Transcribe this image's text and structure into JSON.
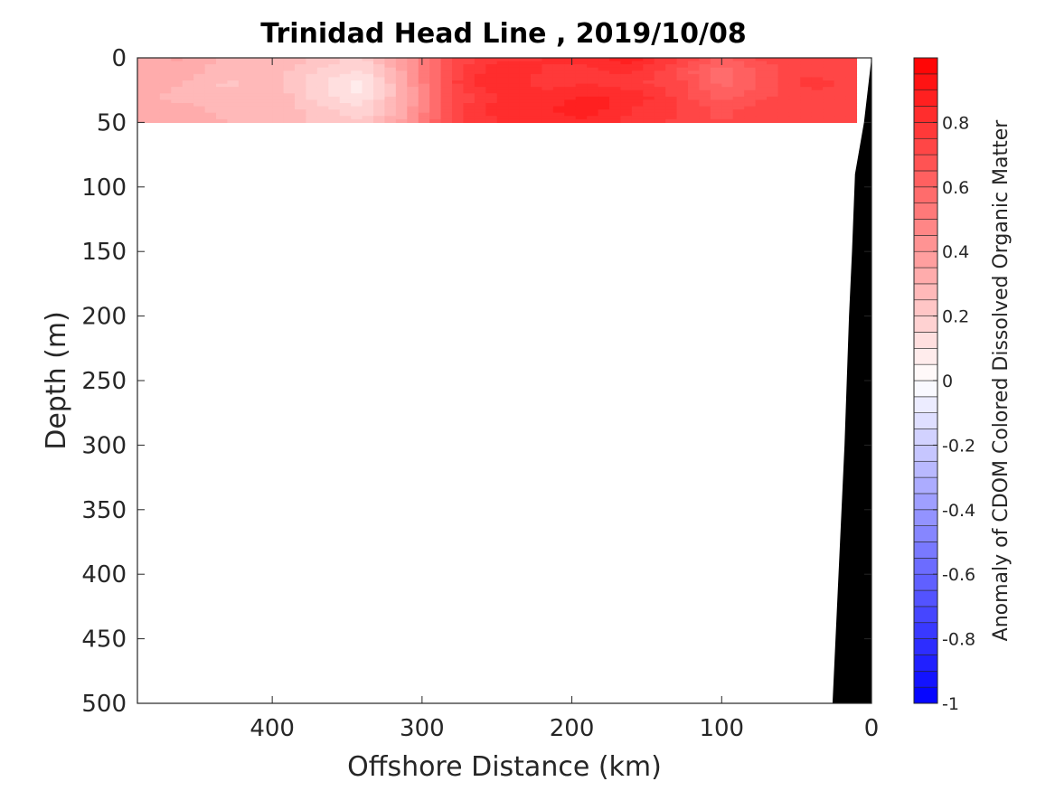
{
  "chart_data": {
    "type": "heatmap",
    "title": "Trinidad Head Line , 2019/10/08",
    "xlabel": "Offshore Distance (km)",
    "ylabel": "Depth (m)",
    "xlim": [
      490,
      0
    ],
    "ylim": [
      0,
      500
    ],
    "x_reversed": true,
    "y_reversed": true,
    "xticks": [
      400,
      300,
      200,
      100,
      0
    ],
    "yticks": [
      0,
      50,
      100,
      150,
      200,
      250,
      300,
      350,
      400,
      450,
      500
    ],
    "data_depth_range": [
      0,
      50
    ],
    "data_distance_range": [
      10,
      490
    ],
    "field": {
      "distance_km": [
        490,
        460,
        430,
        400,
        370,
        340,
        310,
        280,
        250,
        220,
        190,
        160,
        130,
        100,
        70,
        40,
        10
      ],
      "depth_m": [
        0,
        10,
        20,
        30,
        40,
        50
      ],
      "anomaly": [
        [
          0.32,
          0.36,
          0.28,
          0.3,
          0.24,
          0.18,
          0.4,
          0.7,
          0.78,
          0.8,
          0.82,
          0.88,
          0.76,
          0.64,
          0.72,
          0.7,
          0.74
        ],
        [
          0.3,
          0.34,
          0.26,
          0.28,
          0.2,
          0.14,
          0.38,
          0.72,
          0.84,
          0.8,
          0.78,
          0.82,
          0.7,
          0.56,
          0.68,
          0.74,
          0.7
        ],
        [
          0.34,
          0.3,
          0.24,
          0.26,
          0.16,
          0.06,
          0.36,
          0.74,
          0.86,
          0.78,
          0.8,
          0.76,
          0.72,
          0.58,
          0.66,
          0.78,
          0.72
        ],
        [
          0.32,
          0.28,
          0.26,
          0.3,
          0.18,
          0.1,
          0.34,
          0.7,
          0.8,
          0.82,
          0.86,
          0.84,
          0.74,
          0.62,
          0.7,
          0.72,
          0.7
        ],
        [
          0.3,
          0.32,
          0.28,
          0.3,
          0.22,
          0.16,
          0.36,
          0.72,
          0.82,
          0.84,
          0.88,
          0.8,
          0.76,
          0.68,
          0.74,
          0.7,
          0.72
        ],
        [
          0.32,
          0.34,
          0.3,
          0.28,
          0.24,
          0.2,
          0.38,
          0.74,
          0.8,
          0.82,
          0.84,
          0.78,
          0.74,
          0.7,
          0.72,
          0.74,
          0.7
        ]
      ]
    },
    "bathymetry": {
      "color": "#000000",
      "points": [
        [
          0,
          0
        ],
        [
          5,
          50
        ],
        [
          11,
          90
        ],
        [
          13,
          150
        ],
        [
          15,
          200
        ],
        [
          18,
          300
        ],
        [
          22,
          400
        ],
        [
          26,
          500
        ],
        [
          0,
          500
        ]
      ]
    },
    "colorbar": {
      "label": "Anomaly of CDOM Colored Dissolved Organic Matter",
      "range": [
        -1,
        1
      ],
      "levels": 40,
      "ticks": [
        0.8,
        0.6,
        0.4,
        0.2,
        0,
        -0.2,
        -0.4,
        -0.6,
        -0.8,
        -1
      ],
      "tick_labels": [
        "0.8",
        "0.6",
        "0.4",
        "0.2",
        "0",
        "-0.2",
        "-0.4",
        "-0.6",
        "-0.8",
        "-1"
      ],
      "colors": {
        "negative": "#0000ff",
        "zero": "#ffffff",
        "positive": "#ff0000"
      }
    }
  }
}
